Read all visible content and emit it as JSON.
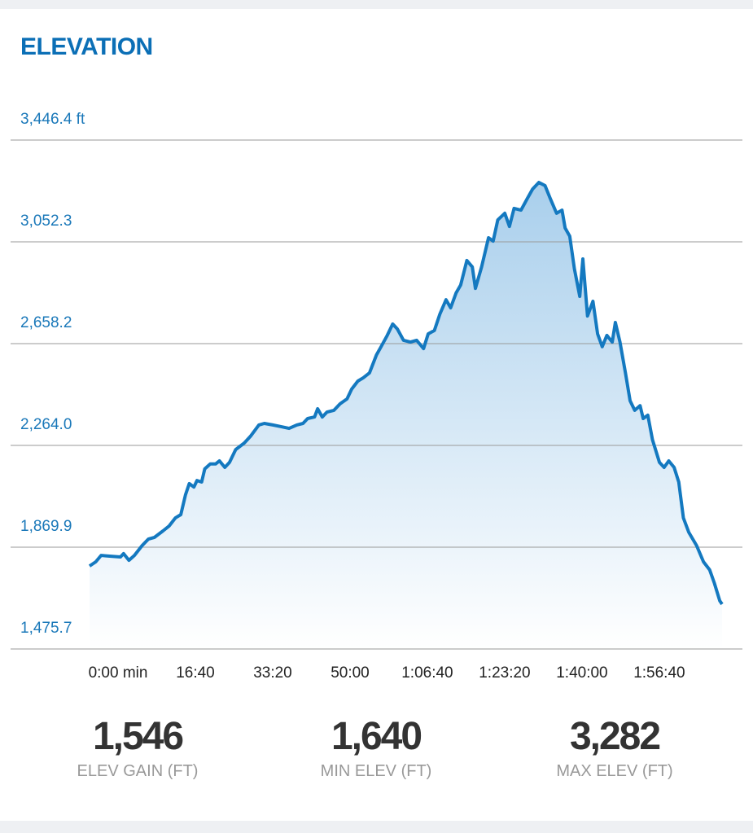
{
  "chart_data": {
    "type": "area",
    "title": "ELEVATION",
    "color": "#1479c0",
    "xlim": [
      0,
      8180
    ],
    "xticks": [
      {
        "value": 0,
        "label": "0:00 min"
      },
      {
        "value": 1000,
        "label": "16:40"
      },
      {
        "value": 2000,
        "label": "33:20"
      },
      {
        "value": 3000,
        "label": "50:00"
      },
      {
        "value": 4000,
        "label": "1:06:40"
      },
      {
        "value": 5000,
        "label": "1:23:20"
      },
      {
        "value": 6000,
        "label": "1:40:00"
      },
      {
        "value": 7000,
        "label": "1:56:40"
      }
    ],
    "ylim": [
      1475.7,
      3446.4
    ],
    "yticks": [
      {
        "value": 1475.7,
        "label": "1,475.7"
      },
      {
        "value": 1869.9,
        "label": "1,869.9"
      },
      {
        "value": 2264.0,
        "label": "2,264.0"
      },
      {
        "value": 2658.2,
        "label": "2,658.2"
      },
      {
        "value": 3052.3,
        "label": "3,052.3"
      },
      {
        "value": 3446.4,
        "label": "3,446.4 ft"
      }
    ],
    "grid": true,
    "x": [
      0,
      80,
      150,
      260,
      400,
      440,
      510,
      580,
      680,
      760,
      840,
      950,
      1030,
      1110,
      1180,
      1240,
      1290,
      1350,
      1390,
      1450,
      1490,
      1560,
      1630,
      1680,
      1750,
      1810,
      1890,
      2000,
      2080,
      2190,
      2260,
      2370,
      2470,
      2580,
      2680,
      2760,
      2820,
      2910,
      2950,
      3010,
      3070,
      3160,
      3240,
      3330,
      3390,
      3470,
      3540,
      3620,
      3710,
      3770,
      3850,
      3920,
      3980,
      4060,
      4150,
      4230,
      4320,
      4380,
      4460,
      4530,
      4610,
      4670,
      4740,
      4800,
      4880,
      4950,
      4990,
      5070,
      5160,
      5220,
      5280,
      5370,
      5430,
      5490,
      5580,
      5660,
      5730,
      5810,
      5890,
      5960,
      6040,
      6110,
      6150,
      6210,
      6270,
      6340,
      6380,
      6440,
      6510,
      6570,
      6630,
      6690,
      6760,
      6800,
      6860,
      6930,
      6990,
      7050,
      7120,
      7160,
      7220,
      7280,
      7370,
      7430,
      7490,
      7560,
      7620,
      7680,
      7750,
      7850,
      7940,
      8020,
      8080,
      8150,
      8180
    ],
    "values": [
      1797,
      1813,
      1838,
      1835,
      1832,
      1845,
      1819,
      1838,
      1876,
      1901,
      1908,
      1933,
      1952,
      1983,
      1996,
      2072,
      2116,
      2103,
      2128,
      2122,
      2173,
      2192,
      2192,
      2204,
      2179,
      2198,
      2248,
      2273,
      2299,
      2343,
      2349,
      2343,
      2337,
      2330,
      2343,
      2349,
      2368,
      2374,
      2406,
      2374,
      2393,
      2400,
      2425,
      2444,
      2482,
      2513,
      2526,
      2545,
      2614,
      2646,
      2690,
      2734,
      2715,
      2671,
      2664,
      2671,
      2639,
      2696,
      2709,
      2772,
      2828,
      2797,
      2854,
      2885,
      2980,
      2955,
      2872,
      2955,
      3068,
      3055,
      3137,
      3163,
      3112,
      3182,
      3175,
      3219,
      3257,
      3282,
      3270,
      3219,
      3163,
      3175,
      3106,
      3074,
      2948,
      2841,
      2986,
      2765,
      2822,
      2696,
      2646,
      2690,
      2664,
      2740,
      2664,
      2545,
      2437,
      2400,
      2418,
      2368,
      2381,
      2286,
      2198,
      2179,
      2204,
      2179,
      2122,
      1983,
      1927,
      1876,
      1813,
      1782,
      1731,
      1662,
      1649
    ]
  },
  "stats": [
    {
      "value": "1,546",
      "label": "ELEV GAIN (FT)"
    },
    {
      "value": "1,640",
      "label": "MIN ELEV (FT)"
    },
    {
      "value": "3,282",
      "label": "MAX ELEV (FT)"
    }
  ]
}
